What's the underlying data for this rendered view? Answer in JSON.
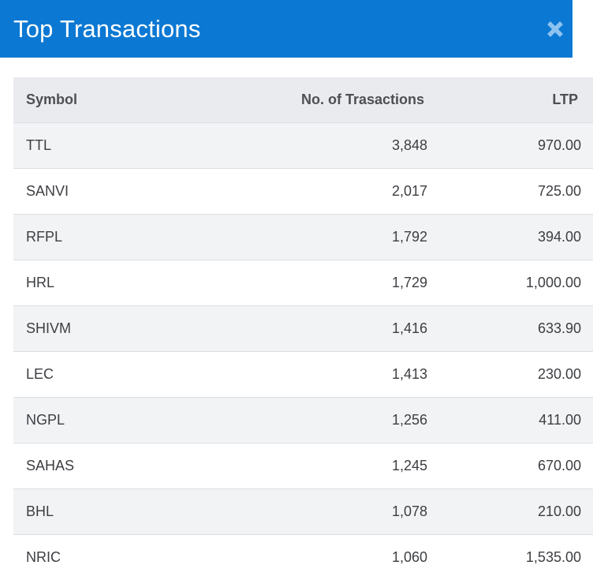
{
  "header": {
    "title": "Top Transactions"
  },
  "table": {
    "columns": [
      "Symbol",
      "No. of Trasactions",
      "LTP"
    ],
    "rows": [
      {
        "symbol": "TTL",
        "transactions": "3,848",
        "ltp": "970.00"
      },
      {
        "symbol": "SANVI",
        "transactions": "2,017",
        "ltp": "725.00"
      },
      {
        "symbol": "RFPL",
        "transactions": "1,792",
        "ltp": "394.00"
      },
      {
        "symbol": "HRL",
        "transactions": "1,729",
        "ltp": "1,000.00"
      },
      {
        "symbol": "SHIVM",
        "transactions": "1,416",
        "ltp": "633.90"
      },
      {
        "symbol": "LEC",
        "transactions": "1,413",
        "ltp": "230.00"
      },
      {
        "symbol": "NGPL",
        "transactions": "1,256",
        "ltp": "411.00"
      },
      {
        "symbol": "SAHAS",
        "transactions": "1,245",
        "ltp": "670.00"
      },
      {
        "symbol": "BHL",
        "transactions": "1,078",
        "ltp": "210.00"
      },
      {
        "symbol": "NRIC",
        "transactions": "1,060",
        "ltp": "1,535.00"
      }
    ]
  },
  "colors": {
    "header_bg": "#0b78d3",
    "close_icon": "#8ec3ef",
    "table_head_bg": "#e9ebee",
    "row_alt_bg": "#f2f3f5"
  },
  "icons": {
    "close": "close-icon"
  }
}
